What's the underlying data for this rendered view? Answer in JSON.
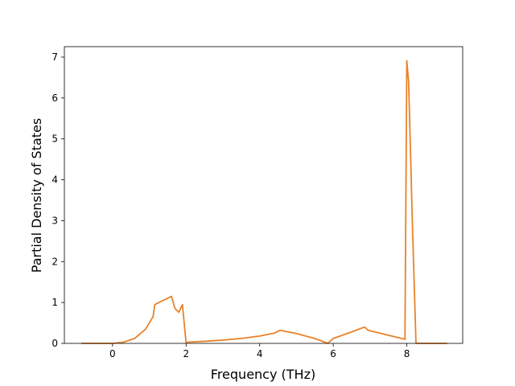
{
  "chart_data": {
    "type": "line",
    "x_label": "Frequency (THz)",
    "y_label": "Partial Density of States",
    "x": [
      -0.85,
      0,
      0.3,
      0.6,
      0.9,
      1.1,
      1.15,
      1.6,
      1.7,
      1.8,
      1.9,
      2.0,
      2.05,
      2.5,
      3.0,
      3.5,
      4.0,
      4.4,
      4.55,
      5.0,
      5.5,
      5.8,
      5.85,
      6.0,
      6.5,
      6.85,
      6.95,
      7.5,
      7.95,
      8.0,
      8.05,
      8.15,
      8.25,
      9.1
    ],
    "series": [
      {
        "color": "#e8822a",
        "values": [
          0,
          0,
          0.03,
          0.12,
          0.35,
          0.65,
          0.95,
          1.15,
          0.85,
          0.76,
          0.95,
          0.0,
          0.03,
          0.05,
          0.08,
          0.12,
          0.18,
          0.25,
          0.32,
          0.24,
          0.12,
          0.02,
          0.0,
          0.12,
          0.28,
          0.4,
          0.32,
          0.2,
          0.1,
          6.91,
          6.4,
          3.0,
          0.0,
          0
        ]
      }
    ],
    "xlim": [
      -1.31,
      9.52
    ],
    "ylim": [
      0,
      7.255
    ],
    "xticks": [
      0,
      2,
      4,
      6,
      8
    ],
    "yticks": [
      0,
      1,
      2,
      3,
      4,
      5,
      6,
      7
    ]
  }
}
